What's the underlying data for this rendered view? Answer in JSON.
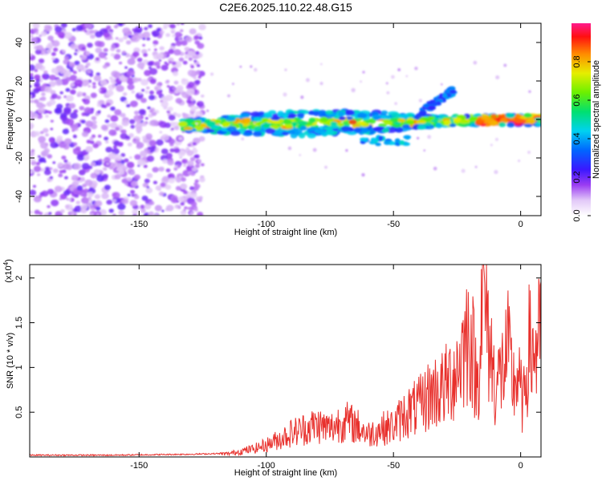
{
  "title": "C2E6.2025.110.22.48.G15",
  "chart_data": [
    {
      "type": "heatmap",
      "name": "spectrogram",
      "xlabel": "Height of straight line (km)",
      "ylabel": "Frequency (Hz)",
      "xlim": [
        -193,
        8
      ],
      "ylim": [
        -50,
        50
      ],
      "xticks": [
        -150,
        -100,
        -50,
        0
      ],
      "yticks": [
        -40,
        -20,
        0,
        20,
        40
      ],
      "colorbar": {
        "label": "Normalized spectral amplitude",
        "range": [
          0,
          1
        ],
        "ticks": [
          0.0,
          0.2,
          0.4,
          0.6,
          0.8
        ]
      },
      "features": [
        {
          "label": "scattered noise region",
          "x_range": [
            -193,
            -125
          ],
          "y_range": [
            -50,
            50
          ],
          "amplitude": 0.1
        },
        {
          "label": "main signal band",
          "x_start": -133,
          "x_end": 8,
          "freq_start": -3,
          "freq_end": 0,
          "peak_amplitude": 0.95,
          "peak_x": -5
        }
      ]
    },
    {
      "type": "line",
      "name": "snr",
      "xlabel": "Height of straight line (km)",
      "ylabel": "SNR (10 * v/v)",
      "y_scale_note": "(x10^4)",
      "xlim": [
        -193,
        8
      ],
      "ylim": [
        0,
        2.15
      ],
      "xticks": [
        -150,
        -100,
        -50,
        0
      ],
      "yticks": [
        0.5,
        1.0,
        1.5,
        2.0
      ],
      "color": "#e8302c",
      "series": [
        {
          "name": "SNR",
          "x": [
            -193,
            -160,
            -130,
            -115,
            -105,
            -100,
            -95,
            -90,
            -85,
            -80,
            -75,
            -70,
            -65,
            -60,
            -55,
            -50,
            -45,
            -40,
            -35,
            -30,
            -25,
            -20,
            -17,
            -15,
            -12,
            -10,
            -8,
            -5,
            -3,
            -1,
            1,
            3,
            5,
            8
          ],
          "values": [
            0.02,
            0.02,
            0.03,
            0.04,
            0.1,
            0.15,
            0.22,
            0.3,
            0.35,
            0.4,
            0.35,
            0.45,
            0.4,
            0.28,
            0.35,
            0.38,
            0.55,
            0.62,
            0.8,
            0.85,
            1.1,
            1.6,
            0.85,
            2.15,
            1.35,
            0.9,
            1.0,
            1.3,
            0.9,
            1.0,
            0.6,
            1.35,
            1.3,
            1.45
          ]
        }
      ]
    }
  ]
}
